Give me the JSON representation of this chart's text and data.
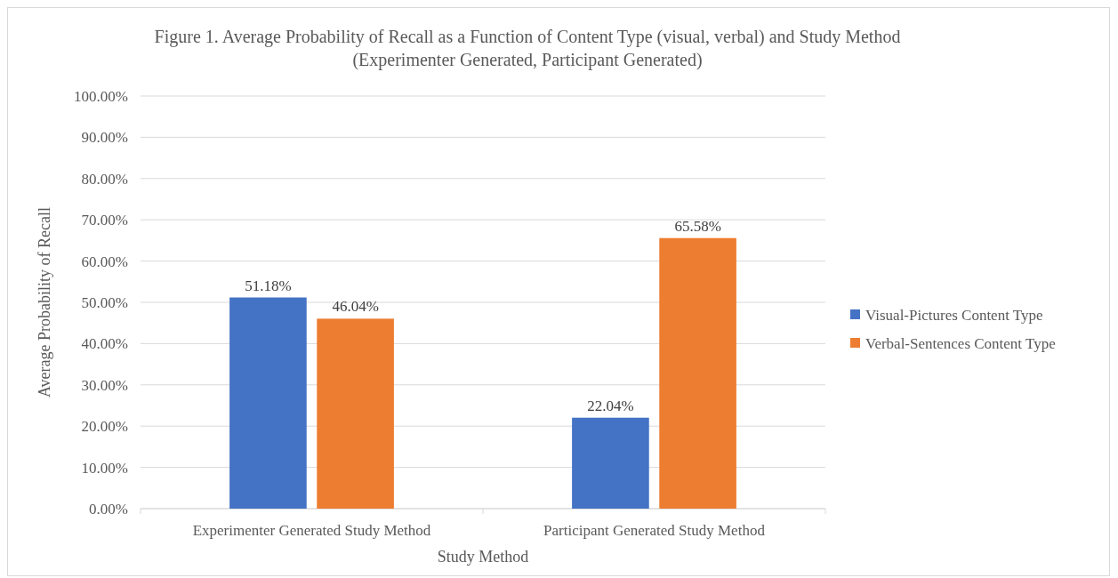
{
  "chart_data": {
    "type": "bar",
    "title": "Figure 1. Average Probability of Recall as a Function of Content Type (visual, verbal) and Study Method (Experimenter Generated, Participant Generated)",
    "xlabel": "Study Method",
    "ylabel": "Average Probability of Recall",
    "categories": [
      "Experimenter Generated Study Method",
      "Participant Generated Study Method"
    ],
    "series": [
      {
        "name": "Visual-Pictures Content Type",
        "color": "#4472c4",
        "values": [
          51.18,
          22.04
        ],
        "value_labels": [
          "51.18%",
          "22.04%"
        ]
      },
      {
        "name": "Verbal-Sentences Content Type",
        "color": "#ed7d31",
        "values": [
          46.04,
          65.58
        ],
        "value_labels": [
          "46.04%",
          "65.58%"
        ]
      }
    ],
    "ylim": [
      0,
      100
    ],
    "yticks": [
      {
        "value": 0,
        "label": "0.00%"
      },
      {
        "value": 10,
        "label": "10.00%"
      },
      {
        "value": 20,
        "label": "20.00%"
      },
      {
        "value": 30,
        "label": "30.00%"
      },
      {
        "value": 40,
        "label": "40.00%"
      },
      {
        "value": 50,
        "label": "50.00%"
      },
      {
        "value": 60,
        "label": "60.00%"
      },
      {
        "value": 70,
        "label": "70.00%"
      },
      {
        "value": 80,
        "label": "80.00%"
      },
      {
        "value": 90,
        "label": "90.00%"
      },
      {
        "value": 100,
        "label": "100.00%"
      }
    ],
    "grid": "y",
    "legend": "right"
  }
}
